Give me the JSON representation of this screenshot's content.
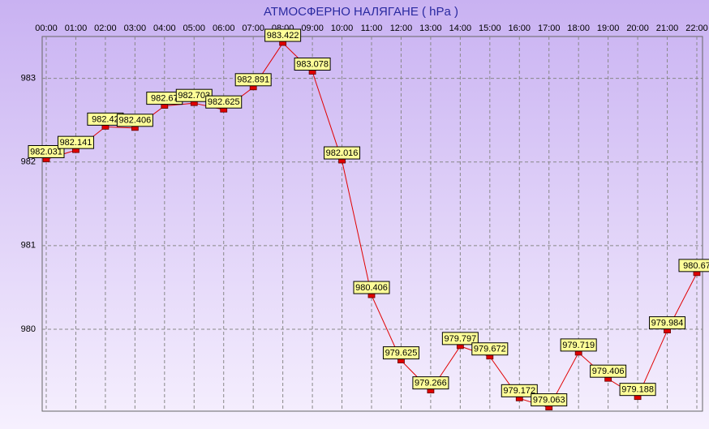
{
  "chart_data": {
    "type": "line",
    "title": "АТМОСФЕРНО НАЛЯГАНЕ  ( hPa )",
    "categories": [
      "00:00",
      "01:00",
      "02:00",
      "03:00",
      "04:00",
      "05:00",
      "06:00",
      "07:00",
      "08:00",
      "09:00",
      "10:00",
      "11:00",
      "12:00",
      "13:00",
      "14:00",
      "15:00",
      "16:00",
      "17:00",
      "18:00",
      "19:00",
      "20:00",
      "21:00",
      "22:00"
    ],
    "values": [
      982.031,
      982.141,
      982.42,
      982.406,
      982.67,
      982.703,
      982.625,
      982.891,
      983.422,
      983.078,
      982.016,
      980.406,
      979.625,
      979.266,
      979.797,
      979.672,
      979.172,
      979.063,
      979.719,
      979.406,
      979.188,
      979.984,
      980.67
    ],
    "color": "#e00000",
    "ylim": [
      979.02,
      983.5
    ],
    "yticks": [
      980,
      981,
      982,
      983
    ],
    "grid": true
  }
}
